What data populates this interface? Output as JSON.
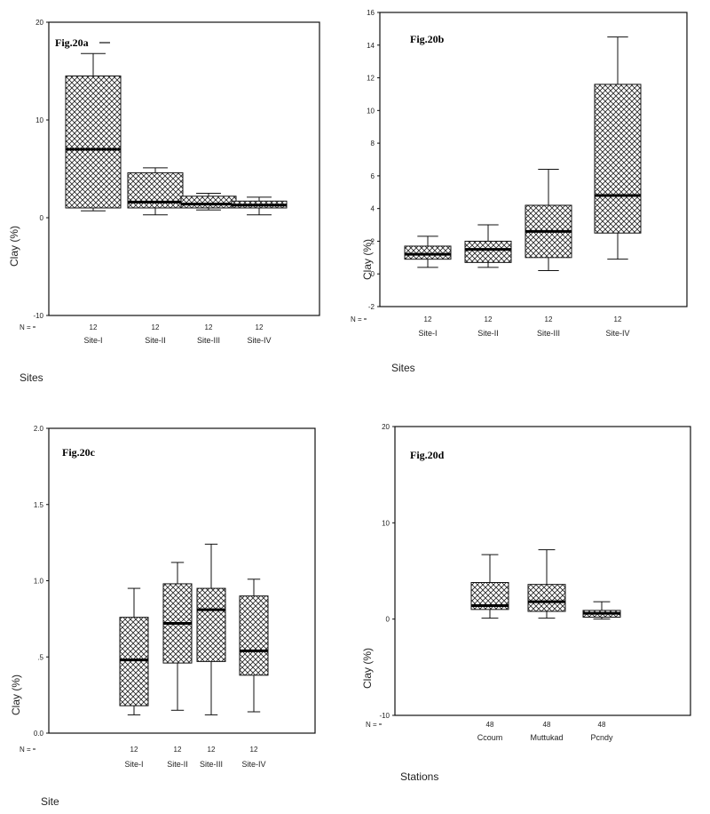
{
  "chart_data": [
    {
      "type": "box",
      "fig_label": "Fig.20a",
      "ylabel": "Clay (%)",
      "xlabel": "Sites",
      "n_label": "N =",
      "ylim": [
        -10,
        20
      ],
      "yticks": [
        -10,
        0,
        10,
        20
      ],
      "ytick_labels": [
        "-10",
        "0",
        "10",
        "20"
      ],
      "categories": [
        "Site-I",
        "Site-II",
        "Site-III",
        "Site-IV"
      ],
      "n": [
        "12",
        "12",
        "12",
        "12"
      ],
      "boxes": [
        {
          "min": 0.7,
          "q1": 1.0,
          "median": 7.0,
          "q3": 14.5,
          "max": 16.8
        },
        {
          "min": 0.3,
          "q1": 1.0,
          "median": 1.6,
          "q3": 4.6,
          "max": 5.1
        },
        {
          "min": 0.8,
          "q1": 1.0,
          "median": 1.4,
          "q3": 2.2,
          "max": 2.5
        },
        {
          "min": 0.3,
          "q1": 1.0,
          "median": 1.3,
          "q3": 1.7,
          "max": 2.1
        }
      ]
    },
    {
      "type": "box",
      "fig_label": "Fig.20b",
      "ylabel": "Clay (%)",
      "xlabel": "Sites",
      "n_label": "N =",
      "ylim": [
        -2,
        16
      ],
      "yticks": [
        -2,
        0,
        2,
        4,
        6,
        8,
        10,
        12,
        14,
        16
      ],
      "ytick_labels": [
        "-2",
        "0",
        "2",
        "4",
        "6",
        "8",
        "10",
        "12",
        "14",
        "16"
      ],
      "categories": [
        "Site-I",
        "Site-II",
        "Site-III",
        "Site-IV"
      ],
      "n": [
        "12",
        "12",
        "12",
        "12"
      ],
      "boxes": [
        {
          "min": 0.4,
          "q1": 0.9,
          "median": 1.2,
          "q3": 1.7,
          "max": 2.3
        },
        {
          "min": 0.4,
          "q1": 0.7,
          "median": 1.5,
          "q3": 2.0,
          "max": 3.0
        },
        {
          "min": 0.2,
          "q1": 1.0,
          "median": 2.6,
          "q3": 4.2,
          "max": 6.4
        },
        {
          "min": 0.9,
          "q1": 2.5,
          "median": 4.8,
          "q3": 11.6,
          "max": 14.5
        }
      ]
    },
    {
      "type": "box",
      "fig_label": "Fig.20c",
      "ylabel": "Clay (%)",
      "xlabel": "Site",
      "n_label": "N =",
      "ylim": [
        0,
        2
      ],
      "yticks": [
        0,
        0.5,
        1.0,
        1.5,
        2.0
      ],
      "ytick_labels": [
        "0.0",
        ".5",
        "1.0",
        "1.5",
        "2.0"
      ],
      "categories": [
        "Site-I",
        "Site-II",
        "Site-III",
        "Site-IV"
      ],
      "n": [
        "12",
        "12",
        "12",
        "12"
      ],
      "boxes": [
        {
          "min": 0.12,
          "q1": 0.18,
          "median": 0.48,
          "q3": 0.76,
          "max": 0.95
        },
        {
          "min": 0.15,
          "q1": 0.46,
          "median": 0.72,
          "q3": 0.98,
          "max": 1.12
        },
        {
          "min": 0.12,
          "q1": 0.47,
          "median": 0.81,
          "q3": 0.95,
          "max": 1.24
        },
        {
          "min": 0.14,
          "q1": 0.38,
          "median": 0.54,
          "q3": 0.9,
          "max": 1.01
        }
      ]
    },
    {
      "type": "box",
      "fig_label": "Fig.20d",
      "ylabel": "Clay (%)",
      "xlabel": "Stations",
      "n_label": "N =",
      "ylim": [
        -10,
        20
      ],
      "yticks": [
        -10,
        0,
        10,
        20
      ],
      "ytick_labels": [
        "-10",
        "0",
        "10",
        "20"
      ],
      "categories": [
        "Ccoum",
        "Muttukad",
        "Pcndy"
      ],
      "n": [
        "48",
        "48",
        "48"
      ],
      "boxes": [
        {
          "min": 0.1,
          "q1": 1.0,
          "median": 1.4,
          "q3": 3.8,
          "max": 6.7
        },
        {
          "min": 0.1,
          "q1": 0.8,
          "median": 1.8,
          "q3": 3.6,
          "max": 7.2
        },
        {
          "min": 0.0,
          "q1": 0.2,
          "median": 0.6,
          "q3": 0.9,
          "max": 1.8
        }
      ]
    }
  ]
}
